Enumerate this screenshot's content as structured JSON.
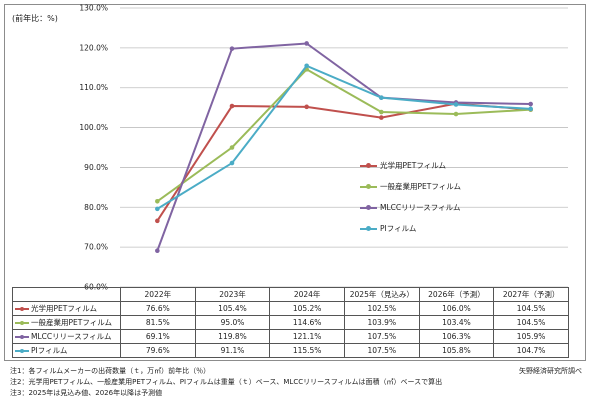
{
  "chart_data": {
    "type": "line",
    "ylabel": "(前年比：%)",
    "ylim": [
      60,
      130
    ],
    "ytick_values": [
      60,
      70,
      80,
      90,
      100,
      110,
      120,
      130
    ],
    "ytick_labels": [
      "60.0%",
      "70.0%",
      "80.0%",
      "90.0%",
      "100.0%",
      "110.0%",
      "120.0%",
      "130.0%"
    ],
    "categories": [
      "2022年",
      "2023年",
      "2024年",
      "2025年（見込み）",
      "2026年（予測）",
      "2027年（予測）"
    ],
    "grid": true,
    "legend_position": "center-right",
    "series": [
      {
        "name": "光学用PETフィルム",
        "color": "#c0504d",
        "values": [
          76.6,
          105.4,
          105.2,
          102.5,
          106.0,
          104.5
        ],
        "labels": [
          "76.6%",
          "105.4%",
          "105.2%",
          "102.5%",
          "106.0%",
          "104.5%"
        ]
      },
      {
        "name": "一般産業用PETフィルム",
        "color": "#9bbb59",
        "values": [
          81.5,
          95.0,
          114.6,
          103.9,
          103.4,
          104.5
        ],
        "labels": [
          "81.5%",
          "95.0%",
          "114.6%",
          "103.9%",
          "103.4%",
          "104.5%"
        ]
      },
      {
        "name": "MLCCリリースフィルム",
        "color": "#8064a2",
        "values": [
          69.1,
          119.8,
          121.1,
          107.5,
          106.3,
          105.9
        ],
        "labels": [
          "69.1%",
          "119.8%",
          "121.1%",
          "107.5%",
          "106.3%",
          "105.9%"
        ]
      },
      {
        "name": "PIフィルム",
        "color": "#4bacc6",
        "values": [
          79.6,
          91.1,
          115.5,
          107.5,
          105.8,
          104.7
        ],
        "labels": [
          "79.6%",
          "91.1%",
          "115.5%",
          "107.5%",
          "105.8%",
          "104.7%"
        ]
      }
    ]
  },
  "notes": [
    "注1：各フィルムメーカーの出荷数量（ｔ，万㎡）前年比（％）",
    "注2：光学用PETフィルム、一般産業用PETフィルム、PIフィルムは重量（ｔ）ベース、MLCCリリースフィルムは面積（㎡）ベースで算出",
    "注3：2025年は見込み値、2026年以降は予測値"
  ],
  "source": "矢野経済研究所調べ"
}
